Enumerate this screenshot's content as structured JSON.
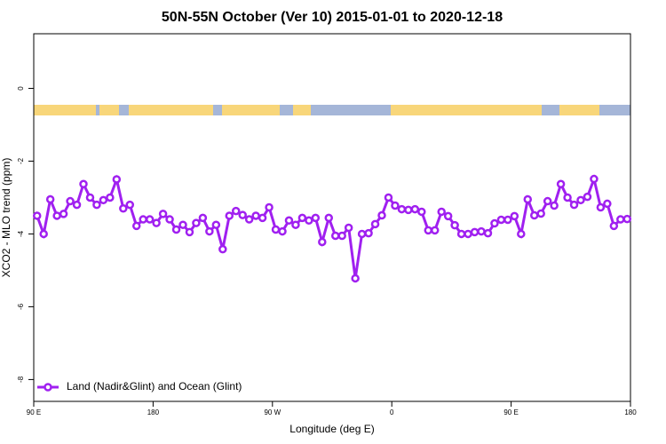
{
  "chart_data": {
    "type": "line",
    "title": "50N-55N October (Ver 10)   2015-01-01 to 2020-12-18",
    "x_label": "Longitude (deg E)",
    "y_label": "XCO2 - MLO trend (ppm)",
    "x": [
      92.5,
      97.5,
      102.5,
      107.5,
      112.5,
      117.5,
      122.5,
      127.5,
      132.5,
      137.5,
      142.5,
      147.5,
      152.5,
      157.5,
      162.5,
      167.5,
      172.5,
      177.5,
      182.5,
      187.5,
      192.5,
      197.5,
      202.5,
      207.5,
      212.5,
      217.5,
      222.5,
      227.5,
      232.5,
      237.5,
      242.5,
      247.5,
      252.5,
      257.5,
      262.5,
      267.5,
      272.5,
      277.5,
      282.5,
      287.5,
      292.5,
      297.5,
      302.5,
      307.5,
      312.5,
      317.5,
      322.5,
      327.5,
      332.5,
      337.5,
      342.5,
      347.5,
      352.5,
      357.5,
      362.5,
      367.5,
      372.5,
      377.5,
      382.5,
      387.5,
      392.5,
      397.5,
      402.5,
      407.5,
      412.5,
      417.5,
      422.5,
      427.5,
      432.5,
      437.5,
      442.5,
      447.5,
      452.5,
      457.5,
      462.5,
      467.5,
      472.5,
      477.5,
      482.5,
      487.5,
      492.5,
      497.5,
      502.5,
      507.5,
      512.5,
      517.5,
      522.5,
      527.5,
      532.5,
      537.5
    ],
    "series": [
      {
        "name": "Land (Nadir&Glint) and Ocean (Glint)",
        "color": "#a020f0",
        "values": [
          -3.5,
          -4.0,
          -3.05,
          -3.5,
          -3.45,
          -3.1,
          -3.2,
          -2.63,
          -3.0,
          -3.2,
          -3.07,
          -3.0,
          -2.5,
          -3.3,
          -3.2,
          -3.78,
          -3.6,
          -3.6,
          -3.7,
          -3.45,
          -3.6,
          -3.88,
          -3.75,
          -3.95,
          -3.7,
          -3.56,
          -3.93,
          -3.75,
          -4.42,
          -3.5,
          -3.37,
          -3.48,
          -3.6,
          -3.5,
          -3.56,
          -3.27,
          -3.88,
          -3.93,
          -3.63,
          -3.75,
          -3.56,
          -3.63,
          -3.56,
          -4.22,
          -3.56,
          -4.05,
          -4.05,
          -3.83,
          -5.22,
          -4.0,
          -3.98,
          -3.73,
          -3.49,
          -3.0,
          -3.22,
          -3.32,
          -3.34,
          -3.32,
          -3.39,
          -3.9,
          -3.9,
          -3.39,
          -3.51,
          -3.76,
          -4.0,
          -4.0,
          -3.95,
          -3.93,
          -3.98,
          -3.71,
          -3.61,
          -3.61,
          -3.51,
          -4.0,
          -3.05,
          -3.49,
          -3.44,
          -3.1,
          -3.22,
          -2.63,
          -3.0,
          -3.2,
          -3.07,
          -2.98,
          -2.49,
          -3.27,
          -3.17,
          -3.78,
          -3.6,
          -3.59
        ]
      }
    ],
    "xlim": [
      90,
      540
    ],
    "xticks": [
      {
        "value": 90,
        "label": "90 E"
      },
      {
        "value": 180,
        "label": "180"
      },
      {
        "value": 270,
        "label": "90 W"
      },
      {
        "value": 360,
        "label": "0"
      },
      {
        "value": 450,
        "label": "90 E"
      },
      {
        "value": 540,
        "label": "180"
      }
    ],
    "ylim": [
      -8.6,
      1.5
    ],
    "yticks": [
      0,
      -2,
      -4,
      -6,
      -8
    ],
    "legend": "bottom-left"
  }
}
